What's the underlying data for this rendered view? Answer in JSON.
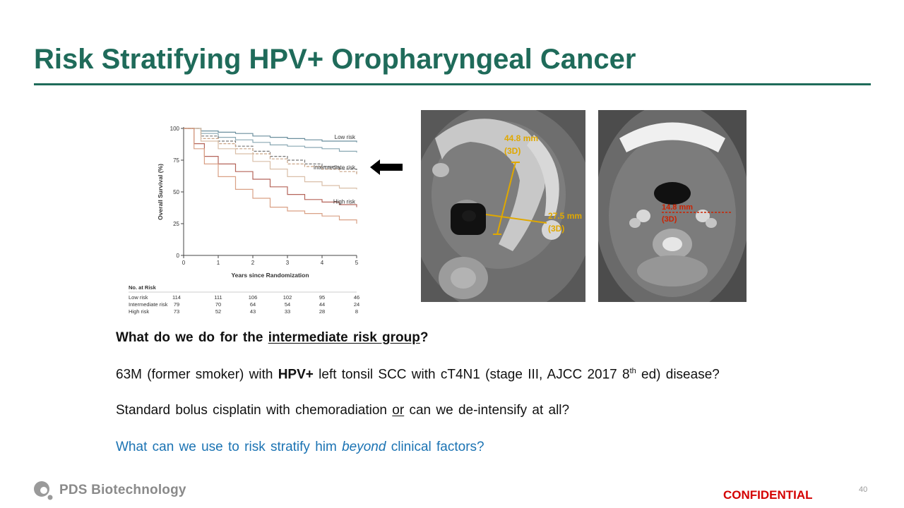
{
  "slide": {
    "title": "Risk Stratifying HPV+ Oropharyngeal Cancer",
    "page_number": "40",
    "confidential": "CONFIDENTIAL",
    "logo_text": "PDS Biotechnology",
    "colors": {
      "title": "#1f6b5a",
      "question_blue": "#1b73b3",
      "confidential_red": "#d40000"
    }
  },
  "text": {
    "question_pre": "What do we do for the ",
    "question_link": "intermediate risk group",
    "question_post": "?",
    "p1_a": "63M (former smoker) with ",
    "p1_b": "HPV+",
    "p1_c": " left tonsil SCC with cT4N1 (stage III, AJCC 2017 8",
    "p1_sup": "th",
    "p1_d": " ed) disease?",
    "p2_a": "Standard bolus cisplatin with chemoradiation ",
    "p2_b": "or",
    "p2_c": " can we de-intensify at all?",
    "p3_a": "What can we use to risk stratify him ",
    "p3_b": "beyond",
    "p3_c": " clinical factors?"
  },
  "scans": {
    "left": {
      "measure1": "44.8 mm",
      "measure1_sub": "(3D)",
      "measure2": "27.5 mm",
      "measure2_sub": "(3D)"
    },
    "right": {
      "measure1": "14.8 mm",
      "measure1_sub": "(3D)"
    }
  },
  "chart_data": {
    "type": "line",
    "title": "",
    "xlabel": "Years since Randomization",
    "ylabel": "Overall Survival (%)",
    "xlim": [
      0,
      5
    ],
    "ylim": [
      0,
      100
    ],
    "xticks": [
      "0",
      "1",
      "2",
      "3",
      "4",
      "5"
    ],
    "yticks": [
      "0",
      "25",
      "50",
      "75",
      "100"
    ],
    "series": [
      {
        "name": "Low risk",
        "color": "#6b8f9e",
        "x": [
          0,
          0.5,
          1,
          1.5,
          2,
          2.5,
          3,
          3.5,
          4,
          4.5,
          5
        ],
        "values": [
          100,
          98,
          97,
          96,
          94,
          93,
          92,
          91,
          90,
          90,
          89
        ]
      },
      {
        "name": "",
        "color": "#8aa8b3",
        "x": [
          0,
          0.5,
          1,
          1.5,
          2,
          2.5,
          3,
          3.5,
          4,
          4.5,
          5
        ],
        "values": [
          100,
          96,
          93,
          91,
          89,
          87,
          86,
          85,
          84,
          82,
          81
        ]
      },
      {
        "name": "Intermediate risk",
        "color": "#777777",
        "x": [
          0,
          0.5,
          1,
          1.5,
          2,
          2.5,
          3,
          3.5,
          4,
          4.5,
          5
        ],
        "values": [
          100,
          94,
          90,
          86,
          82,
          78,
          75,
          72,
          70,
          68,
          65
        ],
        "dashed": true
      },
      {
        "name": "",
        "color": "#c9a385",
        "x": [
          0,
          0.5,
          1,
          1.5,
          2,
          2.5,
          3,
          3.5,
          4,
          4.5,
          5
        ],
        "values": [
          100,
          92,
          88,
          84,
          80,
          76,
          72,
          70,
          68,
          66,
          63
        ],
        "dashed": true
      },
      {
        "name": "",
        "color": "#d9bfa8",
        "x": [
          0,
          0.5,
          1,
          1.5,
          2,
          2.5,
          3,
          3.5,
          4,
          4.5,
          5
        ],
        "values": [
          100,
          90,
          84,
          80,
          74,
          68,
          62,
          58,
          55,
          53,
          52
        ]
      },
      {
        "name": "High risk",
        "color": "#b5655a",
        "x": [
          0,
          0.3,
          0.6,
          1,
          1.5,
          2,
          2.5,
          3,
          3.5,
          4,
          4.5,
          5
        ],
        "values": [
          100,
          88,
          78,
          72,
          66,
          60,
          54,
          48,
          44,
          42,
          40,
          38
        ]
      },
      {
        "name": "",
        "color": "#d9a085",
        "x": [
          0,
          0.3,
          0.6,
          1,
          1.5,
          2,
          2.5,
          3,
          3.5,
          4,
          4.5,
          5
        ],
        "values": [
          100,
          84,
          72,
          62,
          52,
          45,
          38,
          35,
          33,
          31,
          28,
          25
        ]
      }
    ],
    "risk_table": {
      "title": "No. at Risk",
      "rows": [
        {
          "label": "Low risk",
          "values": [
            "114",
            "111",
            "106",
            "102",
            "95",
            "46"
          ]
        },
        {
          "label": "Intermediate risk",
          "values": [
            "79",
            "70",
            "64",
            "54",
            "44",
            "24"
          ]
        },
        {
          "label": "High risk",
          "values": [
            "73",
            "52",
            "43",
            "33",
            "28",
            "8"
          ]
        }
      ]
    }
  }
}
